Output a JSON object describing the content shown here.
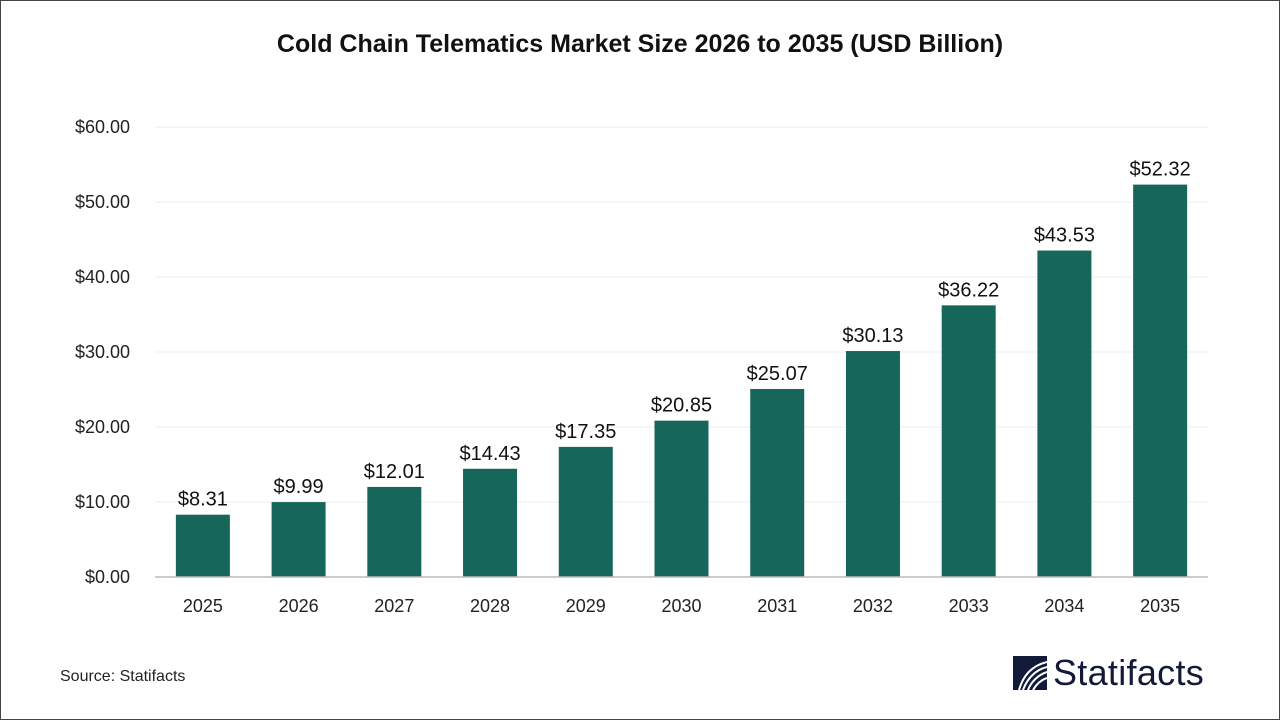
{
  "chart_data": {
    "type": "bar",
    "title": "Cold Chain Telematics Market Size 2026 to 2035 (USD Billion)",
    "categories": [
      "2025",
      "2026",
      "2027",
      "2028",
      "2029",
      "2030",
      "2031",
      "2032",
      "2033",
      "2034",
      "2035"
    ],
    "values": [
      8.31,
      9.99,
      12.01,
      14.43,
      17.35,
      20.85,
      25.07,
      30.13,
      36.22,
      43.53,
      52.32
    ],
    "data_labels": [
      "$8.31",
      "$9.99",
      "$12.01",
      "$14.43",
      "$17.35",
      "$20.85",
      "$25.07",
      "$30.13",
      "$36.22",
      "$43.53",
      "$52.32"
    ],
    "yticks": [
      0,
      10,
      20,
      30,
      40,
      50,
      60
    ],
    "ytick_labels": [
      "$0.00",
      "$10.00",
      "$20.00",
      "$30.00",
      "$40.00",
      "$50.00",
      "$60.00"
    ],
    "ylim": [
      0,
      60
    ],
    "xlabel": "",
    "ylabel": "",
    "grid": true,
    "bar_color": "#17665a"
  },
  "footer": {
    "source": "Source: Statifacts",
    "logo_text": "Statifacts"
  }
}
